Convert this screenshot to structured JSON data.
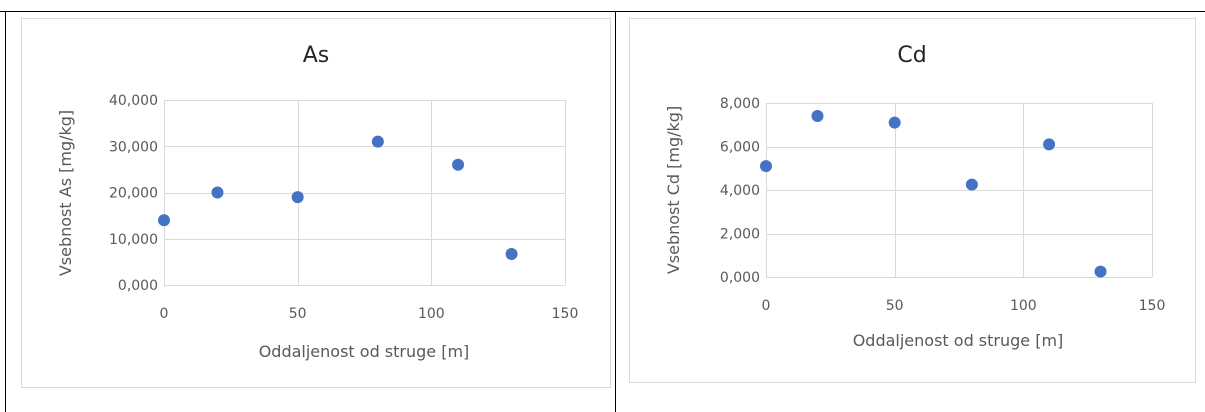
{
  "chart_data": [
    {
      "type": "scatter",
      "title": "As",
      "xlabel": "Oddaljenost od struge [m]",
      "ylabel": "Vsebnost As [mg/kg]",
      "xlim": [
        0,
        150
      ],
      "ylim": [
        0,
        40000
      ],
      "x_ticks": [
        0,
        50,
        100,
        150
      ],
      "y_ticks": [
        0,
        10000,
        20000,
        30000,
        40000
      ],
      "x_tick_labels": [
        "0",
        "50",
        "100",
        "150"
      ],
      "y_tick_labels": [
        "0,000",
        "10,000",
        "20,000",
        "30,000",
        "40,000"
      ],
      "grid": true,
      "color": "#4472c4",
      "points": [
        {
          "x": 0,
          "y": 14000
        },
        {
          "x": 20,
          "y": 20000
        },
        {
          "x": 50,
          "y": 19000
        },
        {
          "x": 80,
          "y": 31000
        },
        {
          "x": 110,
          "y": 26000
        },
        {
          "x": 130,
          "y": 6700
        }
      ]
    },
    {
      "type": "scatter",
      "title": "Cd",
      "xlabel": "Oddaljenost od struge [m]",
      "ylabel": "Vsebnost Cd [mg/kg]",
      "xlim": [
        0,
        150
      ],
      "ylim": [
        0,
        8000
      ],
      "x_ticks": [
        0,
        50,
        100,
        150
      ],
      "y_ticks": [
        0,
        2000,
        4000,
        6000,
        8000
      ],
      "x_tick_labels": [
        "0",
        "50",
        "100",
        "150"
      ],
      "y_tick_labels": [
        "0,000",
        "2,000",
        "4,000",
        "6,000",
        "8,000"
      ],
      "grid": true,
      "color": "#4472c4",
      "points": [
        {
          "x": 0,
          "y": 5100
        },
        {
          "x": 20,
          "y": 7400
        },
        {
          "x": 50,
          "y": 7100
        },
        {
          "x": 80,
          "y": 4250
        },
        {
          "x": 110,
          "y": 6100
        },
        {
          "x": 130,
          "y": 250
        }
      ]
    }
  ]
}
